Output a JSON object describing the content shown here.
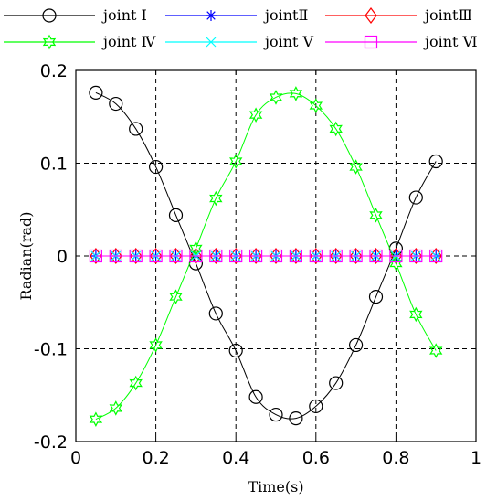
{
  "chart_data": {
    "type": "line",
    "xlabel": "Time(s)",
    "ylabel": "Radian(rad)",
    "xlim": [
      0,
      1
    ],
    "ylim": [
      -0.2,
      0.2
    ],
    "xticks": [
      "0",
      "0.2",
      "0.4",
      "0.6",
      "0.8",
      "1"
    ],
    "yticks": [
      "-0.2",
      "-0.1",
      "0",
      "0.1",
      "0.2"
    ],
    "grid": true,
    "legend": "top",
    "x": [
      0.05,
      0.1,
      0.15,
      0.2,
      0.25,
      0.3,
      0.35,
      0.4,
      0.45,
      0.5,
      0.55,
      0.6,
      0.65,
      0.7,
      0.75,
      0.8,
      0.85,
      0.9
    ],
    "series": [
      {
        "name": "joint Ⅰ",
        "color": "#000000",
        "marker": "circle",
        "values": [
          0.176,
          0.164,
          0.137,
          0.096,
          0.044,
          -0.008,
          -0.062,
          -0.102,
          -0.152,
          -0.171,
          -0.175,
          -0.162,
          -0.137,
          -0.096,
          -0.044,
          0.008,
          0.063,
          0.102
        ]
      },
      {
        "name": "jointⅡ",
        "color": "#0000ff",
        "marker": "asterisk",
        "values": [
          0,
          0,
          0,
          0,
          0,
          0,
          0,
          0,
          0,
          0,
          0,
          0,
          0,
          0,
          0,
          0,
          0,
          0
        ]
      },
      {
        "name": "jointⅢ",
        "color": "#ff0000",
        "marker": "diamond",
        "values": [
          0,
          0,
          0,
          0,
          0,
          0,
          0,
          0,
          0,
          0,
          0,
          0,
          0,
          0,
          0,
          0,
          0,
          0
        ]
      },
      {
        "name": "joint Ⅳ",
        "color": "#00ff00",
        "marker": "hexagram",
        "values": [
          -0.176,
          -0.164,
          -0.137,
          -0.096,
          -0.044,
          0.008,
          0.062,
          0.102,
          0.152,
          0.171,
          0.175,
          0.162,
          0.137,
          0.096,
          0.044,
          -0.008,
          -0.063,
          -0.102
        ]
      },
      {
        "name": "joint Ⅴ",
        "color": "#00ffff",
        "marker": "x",
        "values": [
          0,
          0,
          0,
          0,
          0,
          0,
          0,
          0,
          0,
          0,
          0,
          0,
          0,
          0,
          0,
          0,
          0,
          0
        ]
      },
      {
        "name": "joint Ⅵ",
        "color": "#ff00ff",
        "marker": "square",
        "values": [
          0,
          0,
          0,
          0,
          0,
          0,
          0,
          0,
          0,
          0,
          0,
          0,
          0,
          0,
          0,
          0,
          0,
          0
        ]
      }
    ]
  }
}
